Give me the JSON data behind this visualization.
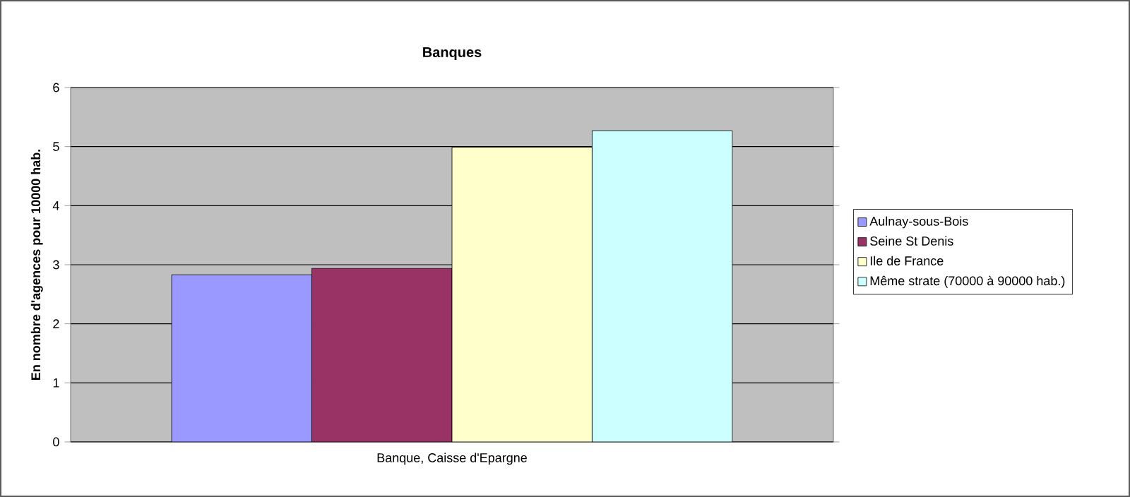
{
  "chart_data": {
    "type": "bar",
    "title": "Banques",
    "ylabel": "En nombre d'agences pour 10000 hab.",
    "categories": [
      "Banque, Caisse d'Epargne"
    ],
    "series": [
      {
        "name": "Aulnay-sous-Bois",
        "color": "#9999ff",
        "values": [
          2.83
        ]
      },
      {
        "name": "Seine St Denis",
        "color": "#993366",
        "values": [
          2.94
        ]
      },
      {
        "name": "Ile de France",
        "color": "#ffffcc",
        "values": [
          4.99
        ]
      },
      {
        "name": "Même strate (70000 à 90000 hab.)",
        "color": "#ccffff",
        "values": [
          5.27
        ]
      }
    ],
    "ylim": [
      0,
      6
    ],
    "yticks": [
      0,
      1,
      2,
      3,
      4,
      5,
      6
    ],
    "grid": "y",
    "legend": "right"
  }
}
